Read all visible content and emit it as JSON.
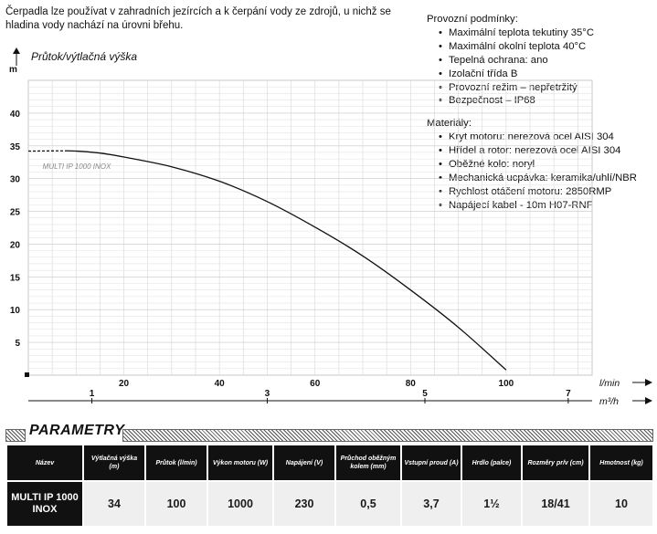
{
  "intro_text": "Čerpadla lze používat v zahradních jezírcích a k čerpání vody ze zdrojů, u nichž se hladina vody nachází na úrovni břehu.",
  "chart_data": {
    "type": "line",
    "title": "Průtok/výtlačná výška",
    "ylabel": "m",
    "xlabel": "l/min",
    "x2label": "m³/h",
    "xlim": [
      0,
      118
    ],
    "ylim": [
      0,
      45
    ],
    "x_ticks": [
      20,
      40,
      60,
      80,
      100
    ],
    "y_ticks": [
      5,
      10,
      15,
      20,
      25,
      30,
      35,
      40
    ],
    "x2_ticks": [
      {
        "value": 1,
        "at_lmin": 13.3
      },
      {
        "value": 3,
        "at_lmin": 50
      },
      {
        "value": 5,
        "at_lmin": 83
      },
      {
        "value": 7,
        "at_lmin": 113
      }
    ],
    "grid": true,
    "series": [
      {
        "name": "MULTI IP 1000 INOX",
        "x": [
          0,
          5,
          10,
          15,
          20,
          30,
          40,
          50,
          60,
          70,
          80,
          90,
          100
        ],
        "y": [
          34.2,
          34.3,
          34.2,
          33.9,
          33.3,
          31.8,
          29.6,
          26.5,
          22.6,
          18.2,
          13.0,
          7.3,
          0.8
        ],
        "dashed_until_x": 8
      }
    ]
  },
  "specs": {
    "conditions_title": "Provozní podmínky:",
    "conditions": [
      "Maximální teplota tekutiny 35°C",
      "Maximální okolní teplota 40°C",
      "Tepelná ochrana: ano",
      "Izolační třída B",
      "Provozní režim – nepřetržitý",
      "Bezpečnost – IP68"
    ],
    "materials_title": "Materiály:",
    "materials": [
      "Kryt motoru: nerezová ocel AISI 304",
      "Hřídel a rotor: nerezová ocel AISI 304",
      "Oběžné kolo: noryl",
      "Mechanická ucpávka: keramika/uhlí/NBR",
      "Rychlost otáčení motoru: 2850RMP",
      "Napájecí kabel - 10m H07-RNF"
    ]
  },
  "params": {
    "title": "PARAMETRY",
    "headers": [
      "Název",
      "Výtlačná výška (m)",
      "Průtok (l/min)",
      "Výkon motoru (W)",
      "Napájení (V)",
      "Průchod oběžným kolem (mm)",
      "Vstupní proud (A)",
      "Hrdlo (palce)",
      "Rozměry pr/v (cm)",
      "Hmotnost (kg)"
    ],
    "row": [
      "MULTI IP 1000 INOX",
      "34",
      "100",
      "1000",
      "230",
      "0,5",
      "3,7",
      "1½",
      "18/41",
      "10"
    ]
  }
}
